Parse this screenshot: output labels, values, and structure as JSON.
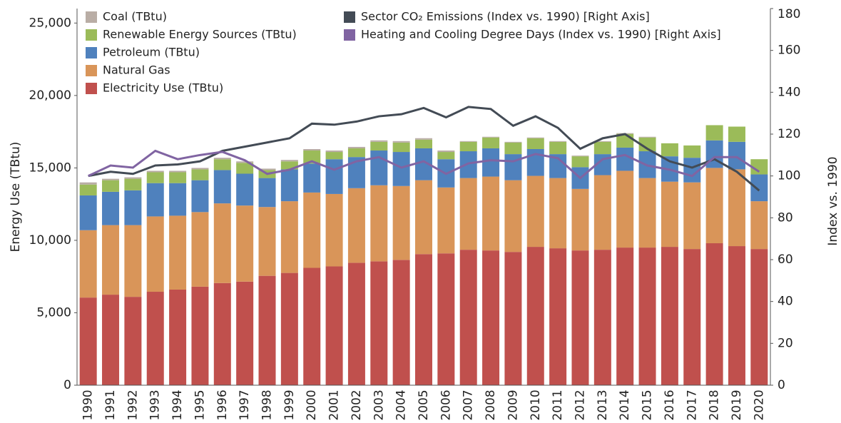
{
  "chart_data": {
    "type": "bar",
    "stacked": true,
    "categories": [
      "1990",
      "1991",
      "1992",
      "1993",
      "1994",
      "1995",
      "1996",
      "1997",
      "1998",
      "1999",
      "2000",
      "2001",
      "2002",
      "2003",
      "2004",
      "2005",
      "2006",
      "2007",
      "2008",
      "2009",
      "2010",
      "2011",
      "2012",
      "2013",
      "2014",
      "2015",
      "2016",
      "2017",
      "2018",
      "2019",
      "2020"
    ],
    "y_label": "Energy Use (TBtu)",
    "y2_label": "Index vs. 1990",
    "ylim": [
      0,
      26000
    ],
    "yticks": [
      0,
      {
        "value": 5000,
        "label": "5,000"
      },
      {
        "value": 10000,
        "label": "10,000"
      },
      {
        "value": 15000,
        "label": "15,000"
      },
      {
        "value": 20000,
        "label": "20,000"
      },
      {
        "value": 25000,
        "label": "25,000"
      }
    ],
    "y2lim": [
      0,
      180
    ],
    "y2ticks": [
      0,
      20,
      40,
      60,
      80,
      100,
      120,
      140,
      160,
      180
    ],
    "series": [
      {
        "name": "Coal (TBtu)",
        "color": "#b9ada5",
        "type": "bar",
        "values": [
          150,
          100,
          100,
          100,
          100,
          100,
          100,
          100,
          100,
          100,
          100,
          100,
          100,
          100,
          100,
          100,
          100,
          50,
          50,
          50,
          50,
          50,
          50,
          50,
          50,
          50,
          0,
          0,
          0,
          0,
          0
        ]
      },
      {
        "name": "Renewable Energy Sources (TBtu)",
        "color": "#9bbb59",
        "type": "bar",
        "values": [
          750,
          800,
          800,
          750,
          750,
          750,
          750,
          750,
          550,
          550,
          900,
          500,
          600,
          600,
          650,
          600,
          500,
          650,
          750,
          800,
          750,
          850,
          750,
          850,
          950,
          950,
          900,
          850,
          1050,
          1050,
          1050
        ]
      },
      {
        "name": "Petroleum (TBtu)",
        "color": "#4f81bd",
        "type": "bar",
        "values": [
          2400,
          2300,
          2400,
          2300,
          2250,
          2200,
          2300,
          2200,
          2000,
          2200,
          2000,
          2400,
          2150,
          2400,
          2350,
          2200,
          1950,
          1850,
          1950,
          1800,
          1850,
          1650,
          1500,
          1450,
          1600,
          1850,
          1750,
          1700,
          1900,
          1900,
          1850
        ]
      },
      {
        "name": "Natural Gas",
        "color": "#d99559",
        "type": "bar",
        "values": [
          4650,
          4800,
          4950,
          5200,
          5100,
          5150,
          5500,
          5250,
          4750,
          4950,
          5200,
          5000,
          5150,
          5250,
          5100,
          5100,
          4550,
          4950,
          5100,
          4950,
          4900,
          4850,
          4250,
          5150,
          5300,
          4800,
          4500,
          4600,
          5200,
          5300,
          3300
        ]
      },
      {
        "name": "Electricity Use (TBtu)",
        "color": "#c0504d",
        "type": "bar",
        "values": [
          6050,
          6250,
          6100,
          6450,
          6600,
          6800,
          7050,
          7150,
          7550,
          7750,
          8100,
          8200,
          8450,
          8550,
          8650,
          9050,
          9100,
          9350,
          9300,
          9200,
          9550,
          9450,
          9300,
          9350,
          9500,
          9500,
          9550,
          9400,
          9800,
          9600,
          9400
        ]
      },
      {
        "name": "Sector CO₂ Emissions (Index vs. 1990) [Right Axis]",
        "color": "#434b55",
        "type": "line",
        "axis": "y2",
        "values": [
          100,
          102,
          101,
          105,
          105.5,
          107,
          112,
          114,
          116,
          118,
          125,
          124.5,
          126,
          128.5,
          129.5,
          132.5,
          128,
          133,
          132,
          124,
          128.5,
          123,
          113,
          118,
          120,
          113,
          107,
          104,
          108,
          102,
          93
        ]
      },
      {
        "name": "Heating and Cooling Degree Days (Index vs. 1990) [Right Axis]",
        "color": "#8064a2",
        "type": "line",
        "axis": "y2",
        "values": [
          100,
          105,
          104,
          112,
          108,
          110,
          111.5,
          107.5,
          101,
          103,
          107,
          103,
          107,
          109,
          104,
          107,
          101,
          106,
          107.5,
          107,
          110.5,
          108.5,
          99,
          108,
          110,
          105,
          103,
          100,
          109,
          109,
          102
        ]
      }
    ]
  }
}
